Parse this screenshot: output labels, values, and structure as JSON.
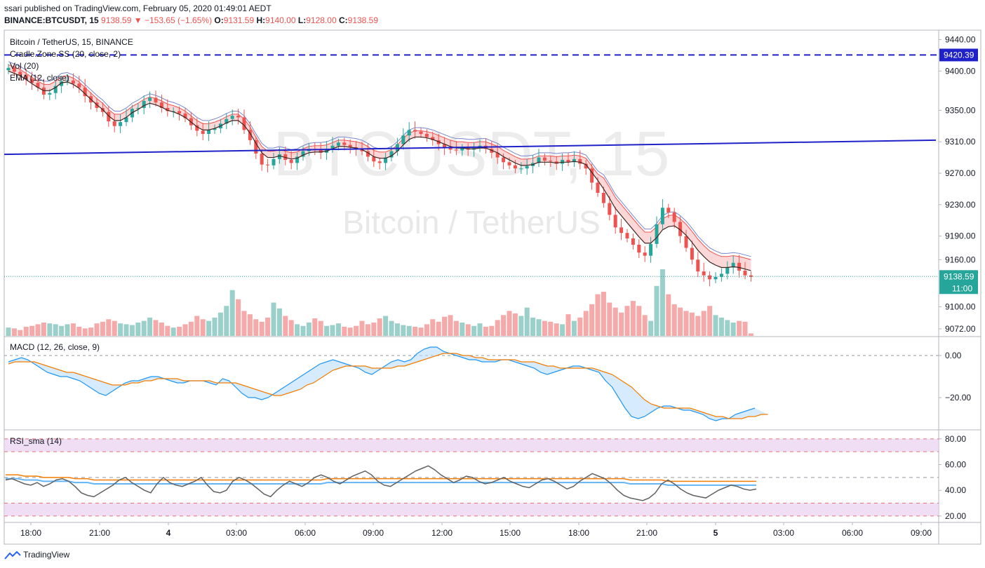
{
  "header": {
    "publish": "ssari published on TradingView.com, February 05, 2020 01:49:01 AEDT",
    "symbol": "BINANCE:BTCUSDT, 15",
    "last": "9138.59",
    "arrow": "▼",
    "change": "−153.65 (−1.65%)",
    "o_label": "O:",
    "o": "9131.59",
    "h_label": "H:",
    "h": "9140.00",
    "l_label": "L:",
    "l": "9128.00",
    "c_label": "C:",
    "c": "9138.59"
  },
  "legend": {
    "name": "Bitcoin / TetherUS, 15, BINANCE",
    "cradle": "Cradle.Zone.SS (20, close, 2)",
    "vol": "Vol (20)",
    "ema": "EMA (12, close)",
    "macd": "MACD (12, 26, close, 9)",
    "rsi": "RSI_sma (14)"
  },
  "watermark": {
    "symbol": "BTCUSDT, 15",
    "name": "Bitcoin / TetherUS"
  },
  "footer": {
    "brand": "TradingView"
  },
  "colors": {
    "up": "#26a69a",
    "down": "#ef5350",
    "up_vol": "#9ad0c9",
    "down_vol": "#f5a9a9",
    "trendline": "#1f22c8",
    "ema": "#3e2723",
    "cradle_band": "#ef5350",
    "macd": "#2196f3",
    "signal": "#f57c00",
    "rsi": "#616161",
    "rsi_band": "#e8d0f0"
  },
  "chart_data": [
    {
      "type": "candlestick",
      "title": "Bitcoin / TetherUS, 15, BINANCE",
      "interval": "15m",
      "x_ticks": [
        "18:00",
        "21:00",
        "4",
        "03:00",
        "06:00",
        "09:00",
        "12:00",
        "15:00",
        "18:00",
        "21:00",
        "5",
        "03:00",
        "06:00",
        "09:00"
      ],
      "y_ticks": [
        "9440.00",
        "9400.00",
        "9350.00",
        "9310.00",
        "9270.00",
        "9230.00",
        "9190.00",
        "9160.00",
        "9100.00",
        "9072.00"
      ],
      "ylim": [
        9063,
        9452
      ],
      "horizontal_line": {
        "value": 9420.39,
        "label": "9420.39",
        "style": "dashed"
      },
      "trendline": {
        "from": [
          0,
          9294
        ],
        "to": [
          128,
          9312
        ],
        "label": ""
      },
      "last_price": {
        "value": 9138.59,
        "label": "9138.59",
        "countdown": "11:00"
      },
      "close_series": [
        9404,
        9399,
        9395,
        9390,
        9385,
        9379,
        9370,
        9372,
        9381,
        9387,
        9388,
        9384,
        9379,
        9368,
        9360,
        9353,
        9348,
        9336,
        9330,
        9335,
        9341,
        9352,
        9353,
        9362,
        9366,
        9360,
        9353,
        9349,
        9349,
        9346,
        9340,
        9331,
        9324,
        9320,
        9325,
        9327,
        9333,
        9339,
        9343,
        9341,
        9325,
        9312,
        9295,
        9281,
        9280,
        9288,
        9294,
        9287,
        9283,
        9291,
        9298,
        9301,
        9300,
        9296,
        9301,
        9305,
        9309,
        9306,
        9303,
        9301,
        9298,
        9291,
        9285,
        9283,
        9290,
        9298,
        9307,
        9318,
        9325,
        9323,
        9320,
        9316,
        9312,
        9307,
        9302,
        9300,
        9299,
        9302,
        9300,
        9302,
        9305,
        9301,
        9296,
        9290,
        9284,
        9280,
        9276,
        9276,
        9279,
        9283,
        9290,
        9286,
        9285,
        9282,
        9287,
        9284,
        9288,
        9282,
        9276,
        9258,
        9245,
        9232,
        9217,
        9201,
        9194,
        9187,
        9179,
        9169,
        9165,
        9180,
        9205,
        9226,
        9220,
        9208,
        9190,
        9175,
        9160,
        9145,
        9140,
        9135,
        9138,
        9142,
        9150,
        9156,
        9146,
        9140,
        9138
      ],
      "ema_series": [
        9400,
        9397,
        9394,
        9389,
        9384,
        9379,
        9375,
        9375,
        9379,
        9385,
        9386,
        9383,
        9378,
        9371,
        9364,
        9357,
        9351,
        9343,
        9337,
        9337,
        9341,
        9347,
        9351,
        9356,
        9359,
        9357,
        9354,
        9350,
        9348,
        9345,
        9341,
        9335,
        9329,
        9325,
        9325,
        9327,
        9330,
        9334,
        9337,
        9337,
        9331,
        9321,
        9308,
        9296,
        9290,
        9290,
        9292,
        9290,
        9288,
        9289,
        9293,
        9296,
        9297,
        9297,
        9298,
        9301,
        9304,
        9304,
        9303,
        9302,
        9300,
        9296,
        9291,
        9289,
        9289,
        9292,
        9298,
        9306,
        9313,
        9316,
        9316,
        9315,
        9313,
        9310,
        9307,
        9304,
        9302,
        9302,
        9301,
        9301,
        9302,
        9302,
        9299,
        9296,
        9291,
        9287,
        9283,
        9280,
        9280,
        9281,
        9284,
        9284,
        9284,
        9283,
        9284,
        9284,
        9285,
        9284,
        9281,
        9271,
        9261,
        9250,
        9238,
        9225,
        9216,
        9207,
        9198,
        9189,
        9181,
        9181,
        9188,
        9198,
        9202,
        9203,
        9198,
        9191,
        9182,
        9172,
        9164,
        9157,
        9153,
        9150,
        9150,
        9151,
        9150,
        9148,
        9146
      ],
      "volume_series": [
        10,
        9,
        7,
        11,
        12,
        14,
        16,
        15,
        14,
        12,
        14,
        15,
        11,
        9,
        10,
        15,
        17,
        20,
        18,
        15,
        14,
        13,
        16,
        18,
        22,
        19,
        16,
        12,
        10,
        11,
        14,
        17,
        24,
        20,
        18,
        22,
        28,
        36,
        55,
        44,
        30,
        26,
        20,
        17,
        22,
        40,
        33,
        24,
        19,
        14,
        12,
        16,
        21,
        18,
        12,
        13,
        15,
        11,
        10,
        12,
        18,
        14,
        16,
        21,
        24,
        18,
        15,
        13,
        12,
        11,
        10,
        14,
        20,
        17,
        23,
        25,
        18,
        16,
        14,
        12,
        15,
        11,
        12,
        19,
        25,
        30,
        27,
        24,
        34,
        22,
        20,
        18,
        17,
        15,
        14,
        26,
        18,
        22,
        30,
        38,
        50,
        53,
        40,
        34,
        28,
        36,
        42,
        36,
        25,
        18,
        60,
        80,
        50,
        38,
        34,
        30,
        28,
        24,
        30,
        36,
        25,
        22,
        19,
        16,
        18,
        17,
        3
      ]
    },
    {
      "type": "line",
      "title": "MACD (12, 26, close, 9)",
      "y_ticks": [
        "0.00",
        "−20.00"
      ],
      "ylim": [
        -35,
        9
      ],
      "series": [
        {
          "values": [
            -3,
            -2,
            -1,
            -2,
            -4,
            -6,
            -8,
            -9,
            -10,
            -10,
            -11,
            -12,
            -14,
            -16,
            -18,
            -19,
            -17,
            -15,
            -13,
            -12,
            -12,
            -11,
            -10,
            -10,
            -11,
            -12,
            -13,
            -13,
            -12,
            -12,
            -12,
            -13,
            -14,
            -11,
            -12,
            -15,
            -18,
            -20,
            -20,
            -21,
            -20,
            -18,
            -16,
            -14,
            -12,
            -10,
            -8,
            -6,
            -4,
            -3,
            -2,
            -3,
            -4,
            -5,
            -6,
            -8,
            -9,
            -7,
            -5,
            -3,
            -2,
            -3,
            -2,
            1,
            3,
            4,
            4,
            2,
            1,
            0,
            -1,
            -2,
            -2,
            -3,
            -3,
            -3,
            -2,
            -2,
            -3,
            -4,
            -5,
            -6,
            -8,
            -9,
            -8,
            -7,
            -6,
            -5,
            -5,
            -6,
            -7,
            -8,
            -12,
            -15,
            -20,
            -25,
            -29,
            -30,
            -29,
            -27,
            -25,
            -24,
            -24,
            -25,
            -26,
            -26,
            -27,
            -28,
            -30,
            -31,
            -30,
            -30,
            -28,
            -27,
            -26,
            -25
          ]
        },
        {
          "values": [
            -4,
            -3,
            -3,
            -3,
            -3,
            -4,
            -5,
            -6,
            -7,
            -8,
            -8,
            -9,
            -10,
            -11,
            -12,
            -13,
            -14,
            -14,
            -14,
            -13,
            -13,
            -12,
            -12,
            -11,
            -11,
            -11,
            -11,
            -12,
            -12,
            -12,
            -12,
            -12,
            -13,
            -13,
            -13,
            -13,
            -14,
            -15,
            -16,
            -17,
            -18,
            -19,
            -19,
            -18,
            -17,
            -16,
            -14,
            -13,
            -11,
            -9,
            -7,
            -6,
            -5,
            -5,
            -5,
            -5,
            -6,
            -6,
            -6,
            -6,
            -5,
            -5,
            -4,
            -3,
            -2,
            -1,
            0,
            1,
            1,
            1,
            0,
            0,
            -1,
            -1,
            -2,
            -2,
            -2,
            -2,
            -2,
            -3,
            -3,
            -3,
            -4,
            -5,
            -5,
            -6,
            -6,
            -6,
            -6,
            -6,
            -6,
            -7,
            -8,
            -9,
            -11,
            -13,
            -15,
            -18,
            -21,
            -23,
            -24,
            -25,
            -25,
            -25,
            -25,
            -25,
            -26,
            -27,
            -28,
            -29,
            -29,
            -30,
            -30,
            -30,
            -29,
            -29,
            -28,
            -28
          ]
        }
      ]
    },
    {
      "type": "line",
      "title": "RSI_sma (14)",
      "y_ticks": [
        "80.00",
        "60.00",
        "40.00",
        "20.00"
      ],
      "ylim": [
        15,
        87
      ],
      "levels": [
        80,
        70,
        50,
        30,
        20
      ],
      "series": [
        {
          "values": [
            48,
            49,
            47,
            45,
            44,
            46,
            43,
            45,
            48,
            49,
            47,
            43,
            38,
            36,
            35,
            38,
            41,
            44,
            48,
            50,
            46,
            43,
            40,
            38,
            45,
            50,
            46,
            44,
            43,
            45,
            47,
            50,
            44,
            39,
            38,
            40,
            47,
            50,
            48,
            45,
            41,
            37,
            35,
            40,
            44,
            47,
            45,
            43,
            46,
            50,
            52,
            50,
            47,
            45,
            48,
            51,
            53,
            55,
            52,
            47,
            44,
            43,
            46,
            49,
            52,
            55,
            57,
            59,
            56,
            52,
            49,
            46,
            48,
            51,
            50,
            47,
            45,
            46,
            48,
            50,
            47,
            45,
            43,
            42,
            45,
            48,
            49,
            47,
            44,
            41,
            43,
            47,
            50,
            53,
            51,
            49,
            45,
            40,
            36,
            34,
            33,
            32,
            34,
            38,
            45,
            48,
            45,
            41,
            38,
            36,
            35,
            34,
            37,
            40,
            42,
            44,
            43,
            41,
            40,
            41
          ]
        },
        {
          "values": [
            49,
            49,
            49,
            48,
            48,
            48,
            47,
            47,
            47,
            47,
            47,
            46,
            46,
            46,
            45,
            45,
            45,
            45,
            45,
            45,
            45,
            45,
            45,
            45,
            45,
            45,
            45,
            45,
            45,
            45,
            45,
            45,
            45,
            45,
            45,
            45,
            45,
            45,
            45,
            45,
            45,
            45,
            45,
            45,
            45,
            45,
            45,
            45,
            45,
            45,
            45,
            46,
            46,
            46,
            46,
            46,
            46,
            46,
            46,
            46,
            46,
            46,
            46,
            46,
            46,
            46,
            46,
            46,
            46,
            46,
            46,
            46,
            46,
            46,
            46,
            46,
            46,
            46,
            46,
            46,
            46,
            46,
            46,
            46,
            46,
            46,
            46,
            46,
            46,
            46,
            46,
            46,
            46,
            46,
            46,
            46,
            46,
            46,
            46,
            45,
            45,
            45,
            45,
            45,
            45,
            44,
            44,
            44,
            44,
            44,
            44,
            44,
            44,
            44,
            44,
            44,
            44,
            44,
            44,
            44
          ]
        }
      ]
    }
  ]
}
